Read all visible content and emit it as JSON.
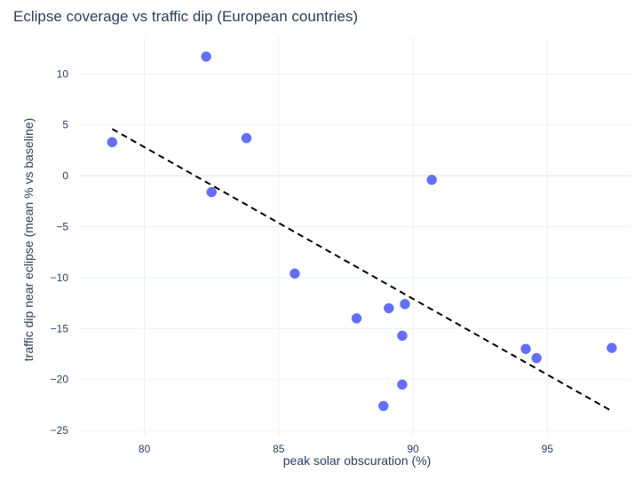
{
  "chart_data": {
    "type": "scatter",
    "title": "Eclipse coverage vs traffic dip (European countries)",
    "xlabel": "peak solar obscuration (%)",
    "ylabel": "traffic dip near eclipse (mean % vs baseline)",
    "xlim": [
      77.6,
      98.1
    ],
    "ylim": [
      -25.6,
      13.6
    ],
    "x_ticks": [
      80,
      85,
      90,
      95
    ],
    "y_ticks": [
      10,
      5,
      0,
      -5,
      -10,
      -15,
      -20,
      -25
    ],
    "x_tick_labels": [
      "80",
      "85",
      "90",
      "95"
    ],
    "y_tick_labels": [
      "10",
      "5",
      "0",
      "−5",
      "−10",
      "−15",
      "−20",
      "−25"
    ],
    "grid": true,
    "marker_color": "#636efa",
    "points": [
      {
        "x": 78.8,
        "y": 3.3
      },
      {
        "x": 82.3,
        "y": 11.7
      },
      {
        "x": 82.5,
        "y": -1.6
      },
      {
        "x": 83.8,
        "y": 3.7
      },
      {
        "x": 85.6,
        "y": -9.6
      },
      {
        "x": 87.9,
        "y": -14.0
      },
      {
        "x": 88.9,
        "y": -22.6
      },
      {
        "x": 89.1,
        "y": -13.0
      },
      {
        "x": 89.6,
        "y": -15.7
      },
      {
        "x": 89.6,
        "y": -20.5
      },
      {
        "x": 89.7,
        "y": -12.6
      },
      {
        "x": 90.7,
        "y": -0.4
      },
      {
        "x": 94.2,
        "y": -17.0
      },
      {
        "x": 94.6,
        "y": -17.9
      },
      {
        "x": 97.4,
        "y": -16.9
      }
    ],
    "trend_line": {
      "style": "dashed",
      "color": "#000000",
      "x": [
        78.8,
        97.4
      ],
      "y": [
        4.6,
        -23.1
      ]
    }
  }
}
